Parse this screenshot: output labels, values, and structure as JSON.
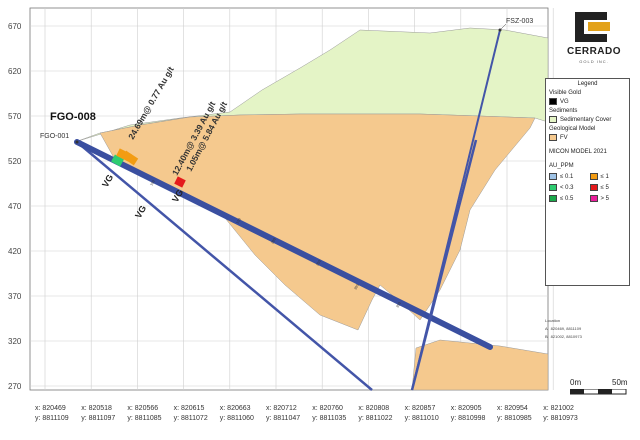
{
  "y_axis": {
    "ticks": [
      "670",
      "620",
      "570",
      "520",
      "470",
      "420",
      "370",
      "320",
      "270"
    ]
  },
  "x_axis": {
    "ticks": [
      {
        "x": "x: 820469",
        "y": "y: 8811109"
      },
      {
        "x": "x: 820518",
        "y": "y: 8811097"
      },
      {
        "x": "x: 820566",
        "y": "y: 8811085"
      },
      {
        "x": "x: 820615",
        "y": "y: 8811072"
      },
      {
        "x": "x: 820663",
        "y": "y: 8811060"
      },
      {
        "x": "x: 820712",
        "y": "y: 8811047"
      },
      {
        "x": "x: 820760",
        "y": "y: 8811035"
      },
      {
        "x": "x: 820808",
        "y": "y: 8811022"
      },
      {
        "x": "x: 820857",
        "y": "y: 8811010"
      },
      {
        "x": "x: 820905",
        "y": "y: 8810998"
      },
      {
        "x": "x: 820954",
        "y": "y: 8810985"
      },
      {
        "x": "x: 821002",
        "y": "y: 8810973"
      }
    ]
  },
  "drillholes": {
    "main": "FGO-008",
    "collar_a": "FGO-001",
    "collar_b": "FSZ-003"
  },
  "annotations": {
    "intercept_1": "24.69m@ 0.77 Au g/t",
    "intercept_2": "12.40m@ 3.39 Au g/t",
    "intercept_3": "1.05m@ 5.84 Au g/t",
    "vg": "VG"
  },
  "legend": {
    "title": "Legend",
    "visible_gold_header": "Visible Gold",
    "visible_gold_item": "VG",
    "sediments_header": "Sediments",
    "sediments_item": "Sedimentary Cover",
    "geo_header": "Geological Model",
    "geo_item": "FV",
    "model_note": "MICON MODEL 2021",
    "au_header": "AU_PPM",
    "au_bins": [
      {
        "label": "≤ 0.1",
        "color": "#9fc3e6"
      },
      {
        "label": "≤ 1",
        "color": "#f39c12"
      },
      {
        "label": "< 0.3",
        "color": "#2ecc71"
      },
      {
        "label": "≤ 5",
        "color": "#e41a1c"
      },
      {
        "label": "≤ 0.5",
        "color": "#1aa84a"
      },
      {
        "label": "> 5",
        "color": "#e91e9b"
      }
    ]
  },
  "location": {
    "title": "Location",
    "a_label": "A",
    "a_coords": "820469, 8811109",
    "b_label": "B",
    "b_coords": "821002, 8810973"
  },
  "logo": {
    "brand": "CERRADO",
    "sub": "GOLD INC."
  },
  "scale": {
    "start": "0m",
    "end": "50m"
  },
  "colors": {
    "sedimentary_cover": "#e4f4c6",
    "fv": "#f5c98e",
    "hole": "#3a4fa0",
    "visible_gold": "#000000",
    "logo_gold": "#e3a21a"
  }
}
